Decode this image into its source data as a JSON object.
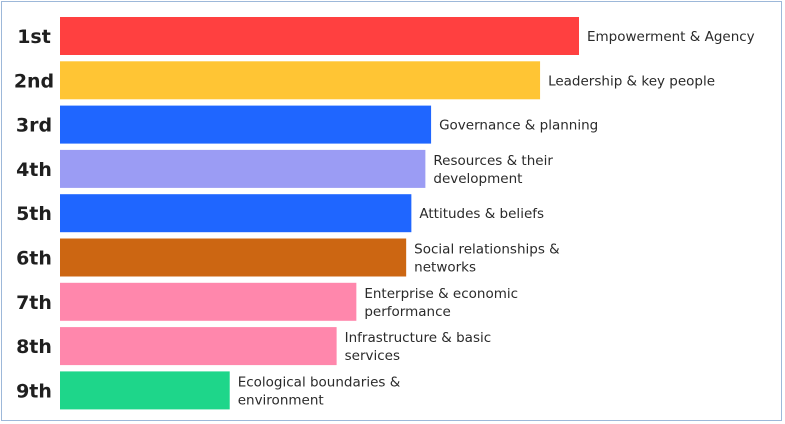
{
  "chart_data": {
    "type": "bar",
    "orientation": "horizontal",
    "ranks": [
      "1st",
      "2nd",
      "3rd",
      "4th",
      "5th",
      "6th",
      "7th",
      "8th",
      "9th"
    ],
    "categories": [
      [
        "Empowerment & Agency"
      ],
      [
        "Leadership & key people"
      ],
      [
        "Governance & planning"
      ],
      [
        "Resources & their",
        "development"
      ],
      [
        "Attitudes & beliefs"
      ],
      [
        "Social relationships &",
        "networks"
      ],
      [
        "Enterprise & economic",
        "performance"
      ],
      [
        "Infrastructure & basic",
        "services"
      ],
      [
        "Ecological boundaries &",
        "environment"
      ]
    ],
    "values": [
      100,
      92.5,
      71.5,
      70.4,
      67.7,
      66.7,
      57.1,
      53.3,
      32.7
    ],
    "xlim": [
      0,
      100
    ],
    "colors": [
      "#ff4040",
      "#ffc534",
      "#1f66ff",
      "#9b9cf4",
      "#1f66ff",
      "#cc6612",
      "#ff87ac",
      "#ff87ac",
      "#1ed68a"
    ],
    "grid": false,
    "legend": "none"
  }
}
